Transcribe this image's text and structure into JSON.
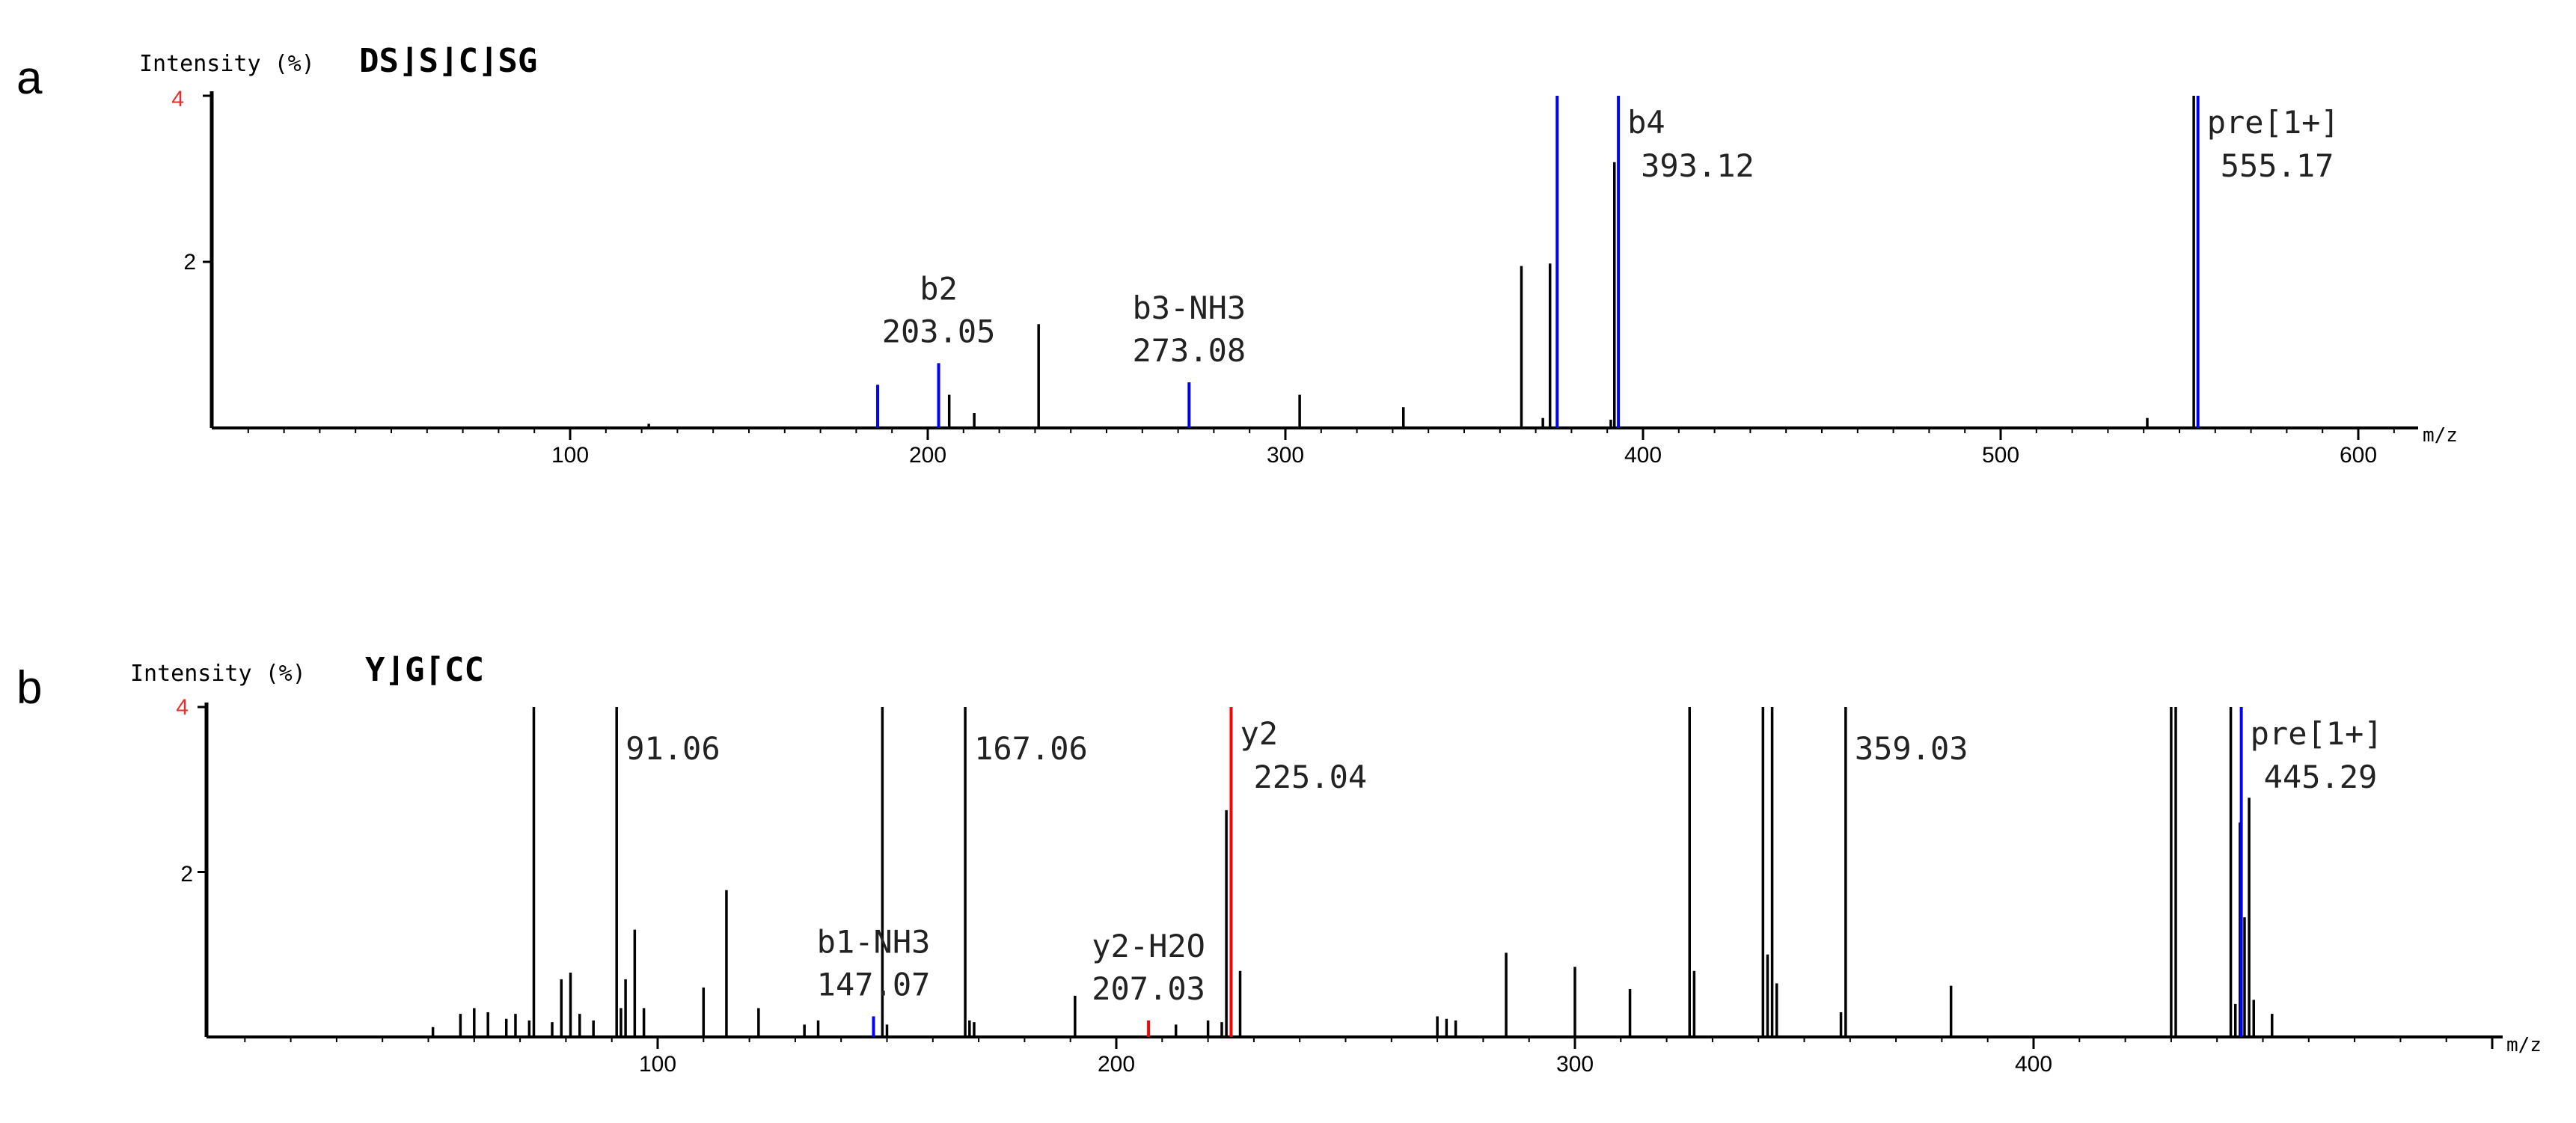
{
  "chart_data": [
    {
      "panel": "a",
      "type": "bar",
      "ylabel": "Intensity (%)",
      "xlabel": "m/z",
      "sequence": "DS⌋S⌋C⌋SG",
      "xlim": [
        0,
        615
      ],
      "ylim": [
        0,
        4
      ],
      "xticks": [
        100,
        200,
        300,
        400,
        500,
        600
      ],
      "yticks": [
        2,
        4
      ],
      "peaks": [
        {
          "x": 122,
          "y": 0.05,
          "color": "#000000"
        },
        {
          "x": 186,
          "y": 0.52,
          "color": "#0000ff"
        },
        {
          "x": 203.05,
          "y": 0.78,
          "color": "#0000ff"
        },
        {
          "x": 206,
          "y": 0.4,
          "color": "#000000"
        },
        {
          "x": 213,
          "y": 0.18,
          "color": "#000000"
        },
        {
          "x": 231,
          "y": 1.25,
          "color": "#000000"
        },
        {
          "x": 273.08,
          "y": 0.55,
          "color": "#0000ff"
        },
        {
          "x": 304,
          "y": 0.4,
          "color": "#000000"
        },
        {
          "x": 333,
          "y": 0.25,
          "color": "#000000"
        },
        {
          "x": 366,
          "y": 1.95,
          "color": "#000000"
        },
        {
          "x": 372,
          "y": 0.12,
          "color": "#000000"
        },
        {
          "x": 374,
          "y": 1.98,
          "color": "#000000"
        },
        {
          "x": 376,
          "y": 4.0,
          "color": "#0000ff"
        },
        {
          "x": 391,
          "y": 0.1,
          "color": "#000000"
        },
        {
          "x": 392,
          "y": 3.2,
          "color": "#000000"
        },
        {
          "x": 393.12,
          "y": 4.0,
          "color": "#0000ff"
        },
        {
          "x": 541,
          "y": 0.12,
          "color": "#000000"
        },
        {
          "x": 554,
          "y": 4.0,
          "color": "#000000"
        },
        {
          "x": 555.17,
          "y": 4.0,
          "color": "#0000ff"
        }
      ],
      "annotations": [
        {
          "name": "b2",
          "value": "203.05",
          "x": 203.05,
          "y": 0.78
        },
        {
          "name": "b3-NH3",
          "value": "273.08",
          "x": 273.08,
          "y": 0.55
        },
        {
          "name": "b4",
          "value": "393.12",
          "x": 393.12,
          "y": 4.0
        },
        {
          "name": "pre[1+]",
          "value": "555.17",
          "x": 555.17,
          "y": 4.0
        }
      ]
    },
    {
      "panel": "b",
      "type": "bar",
      "ylabel": "Intensity (%)",
      "xlabel": "m/z",
      "sequence": "Y⌋G⌈CC",
      "xlim": [
        0,
        495
      ],
      "ylim": [
        0,
        4
      ],
      "xticks": [
        100,
        200,
        300,
        400
      ],
      "yticks": [
        2,
        4
      ],
      "peaks": [
        {
          "x": 51,
          "y": 0.12,
          "color": "#000000"
        },
        {
          "x": 57,
          "y": 0.28,
          "color": "#000000"
        },
        {
          "x": 60,
          "y": 0.35,
          "color": "#000000"
        },
        {
          "x": 63,
          "y": 0.3,
          "color": "#000000"
        },
        {
          "x": 67,
          "y": 0.22,
          "color": "#000000"
        },
        {
          "x": 69,
          "y": 0.28,
          "color": "#000000"
        },
        {
          "x": 72,
          "y": 0.2,
          "color": "#000000"
        },
        {
          "x": 73,
          "y": 4.0,
          "color": "#000000"
        },
        {
          "x": 77,
          "y": 0.18,
          "color": "#000000"
        },
        {
          "x": 79,
          "y": 0.7,
          "color": "#000000"
        },
        {
          "x": 81,
          "y": 0.78,
          "color": "#000000"
        },
        {
          "x": 83,
          "y": 0.28,
          "color": "#000000"
        },
        {
          "x": 86,
          "y": 0.2,
          "color": "#000000"
        },
        {
          "x": 91.06,
          "y": 4.0,
          "color": "#000000"
        },
        {
          "x": 92,
          "y": 0.35,
          "color": "#000000"
        },
        {
          "x": 93,
          "y": 0.7,
          "color": "#000000"
        },
        {
          "x": 95,
          "y": 1.3,
          "color": "#000000"
        },
        {
          "x": 97,
          "y": 0.35,
          "color": "#000000"
        },
        {
          "x": 110,
          "y": 0.6,
          "color": "#000000"
        },
        {
          "x": 115,
          "y": 1.78,
          "color": "#000000"
        },
        {
          "x": 122,
          "y": 0.35,
          "color": "#000000"
        },
        {
          "x": 132,
          "y": 0.15,
          "color": "#000000"
        },
        {
          "x": 135,
          "y": 0.2,
          "color": "#000000"
        },
        {
          "x": 147.07,
          "y": 0.25,
          "color": "#0000ff"
        },
        {
          "x": 149,
          "y": 4.0,
          "color": "#000000"
        },
        {
          "x": 150,
          "y": 0.15,
          "color": "#000000"
        },
        {
          "x": 167.06,
          "y": 4.0,
          "color": "#000000"
        },
        {
          "x": 168,
          "y": 0.2,
          "color": "#000000"
        },
        {
          "x": 169,
          "y": 0.18,
          "color": "#000000"
        },
        {
          "x": 191,
          "y": 0.5,
          "color": "#000000"
        },
        {
          "x": 207.03,
          "y": 0.2,
          "color": "#ff0000"
        },
        {
          "x": 213,
          "y": 0.15,
          "color": "#000000"
        },
        {
          "x": 220,
          "y": 0.2,
          "color": "#000000"
        },
        {
          "x": 223,
          "y": 0.18,
          "color": "#000000"
        },
        {
          "x": 224,
          "y": 2.75,
          "color": "#000000"
        },
        {
          "x": 225.04,
          "y": 4.0,
          "color": "#ff0000"
        },
        {
          "x": 227,
          "y": 0.8,
          "color": "#000000"
        },
        {
          "x": 270,
          "y": 0.25,
          "color": "#000000"
        },
        {
          "x": 272,
          "y": 0.22,
          "color": "#000000"
        },
        {
          "x": 274,
          "y": 0.2,
          "color": "#000000"
        },
        {
          "x": 285,
          "y": 1.02,
          "color": "#000000"
        },
        {
          "x": 300,
          "y": 0.85,
          "color": "#000000"
        },
        {
          "x": 312,
          "y": 0.58,
          "color": "#000000"
        },
        {
          "x": 325,
          "y": 4.0,
          "color": "#000000"
        },
        {
          "x": 326,
          "y": 0.8,
          "color": "#000000"
        },
        {
          "x": 341,
          "y": 4.0,
          "color": "#000000"
        },
        {
          "x": 342,
          "y": 1.0,
          "color": "#000000"
        },
        {
          "x": 343,
          "y": 4.0,
          "color": "#000000"
        },
        {
          "x": 344,
          "y": 0.65,
          "color": "#000000"
        },
        {
          "x": 358,
          "y": 0.3,
          "color": "#000000"
        },
        {
          "x": 359.03,
          "y": 4.0,
          "color": "#000000"
        },
        {
          "x": 382,
          "y": 0.62,
          "color": "#000000"
        },
        {
          "x": 430,
          "y": 4.0,
          "color": "#000000"
        },
        {
          "x": 431,
          "y": 4.0,
          "color": "#000000"
        },
        {
          "x": 443,
          "y": 4.0,
          "color": "#000000"
        },
        {
          "x": 444,
          "y": 0.4,
          "color": "#000000"
        },
        {
          "x": 445,
          "y": 2.6,
          "color": "#000000"
        },
        {
          "x": 445.29,
          "y": 4.0,
          "color": "#0000ff"
        },
        {
          "x": 446,
          "y": 1.45,
          "color": "#000000"
        },
        {
          "x": 447,
          "y": 2.9,
          "color": "#000000"
        },
        {
          "x": 448,
          "y": 0.45,
          "color": "#000000"
        },
        {
          "x": 452,
          "y": 0.28,
          "color": "#000000"
        }
      ],
      "annotations": [
        {
          "name": "",
          "value": "91.06",
          "x": 91.06,
          "y": 4.0
        },
        {
          "name": "",
          "value": "167.06",
          "x": 167.06,
          "y": 4.0
        },
        {
          "name": "y2",
          "value": "225.04",
          "x": 225.04,
          "y": 4.0
        },
        {
          "name": "",
          "value": "359.03",
          "x": 359.03,
          "y": 4.0
        },
        {
          "name": "pre[1+]",
          "value": "445.29",
          "x": 445.29,
          "y": 4.0
        },
        {
          "name": "b1-NH3",
          "value": "147.07",
          "x": 147.07,
          "y": 0.25
        },
        {
          "name": "y2-H2O",
          "value": "207.03",
          "x": 207.03,
          "y": 0.2
        }
      ]
    }
  ],
  "panels": {
    "a": {
      "letter": "a",
      "ylabel": "Intensity (%)",
      "sequence": "DS⌋S⌋C⌋SG",
      "ytop": "4",
      "ymid": "2",
      "xunit": "m/z"
    },
    "b": {
      "letter": "b",
      "ylabel": "Intensity (%)",
      "sequence": "Y⌋G⌈CC",
      "ytop": "4",
      "ymid": "2",
      "xunit": "m/z"
    }
  }
}
